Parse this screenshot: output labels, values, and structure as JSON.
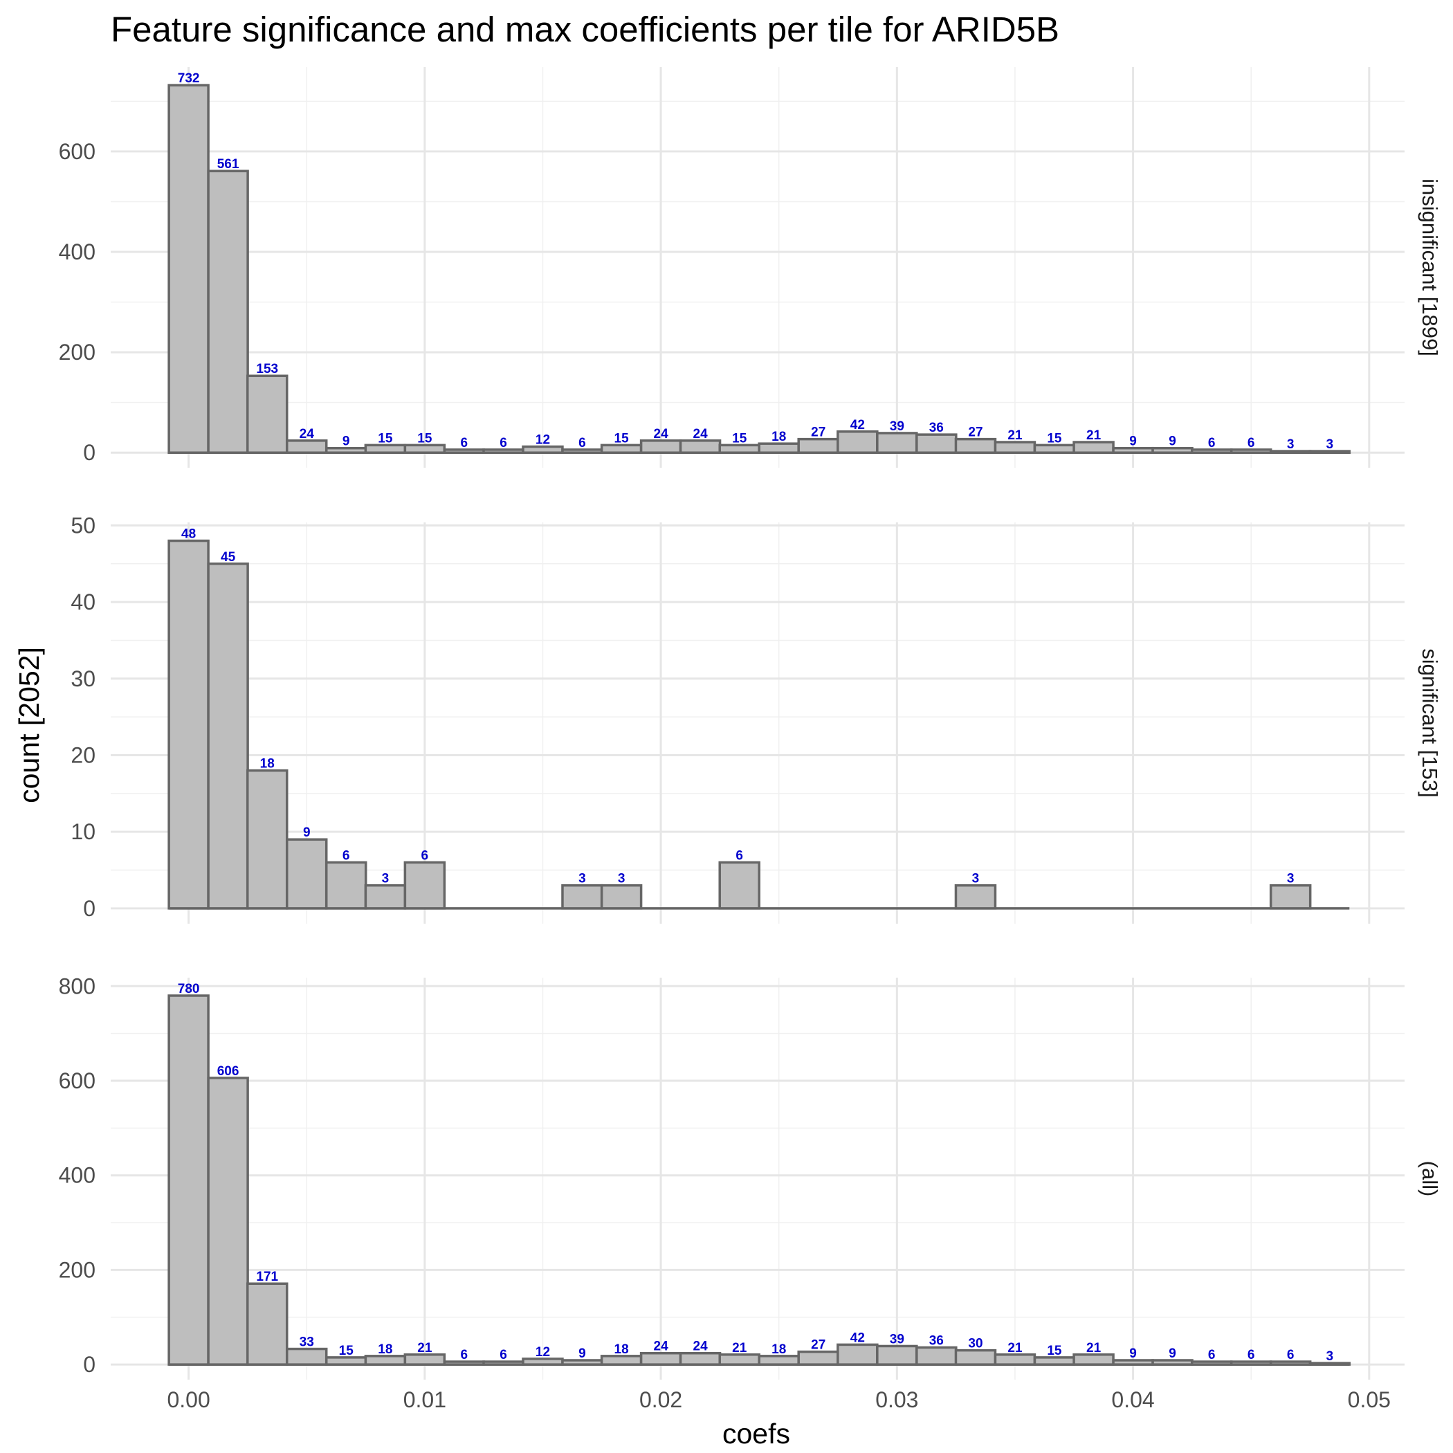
{
  "chart_data": {
    "type": "bar",
    "title": "Feature significance and max coefficients per tile for ARID5B",
    "xlabel": "coefs",
    "ylabel": "count [2052]",
    "xlim": [
      -0.0033,
      0.0515
    ],
    "x_ticks": [
      "0.00",
      "0.01",
      "0.02",
      "0.03",
      "0.04",
      "0.05"
    ],
    "x_tick_values": [
      0,
      0.01,
      0.02,
      0.03,
      0.04,
      0.05
    ],
    "bin_width": 0.00167,
    "x": [
      0,
      0.00167,
      0.00333,
      0.005,
      0.00667,
      0.00833,
      0.01,
      0.01167,
      0.01333,
      0.015,
      0.01667,
      0.01833,
      0.02,
      0.02167,
      0.02333,
      0.025,
      0.02667,
      0.02833,
      0.03,
      0.03167,
      0.03333,
      0.035,
      0.03667,
      0.03833,
      0.04,
      0.04167,
      0.04333,
      0.045,
      0.04667,
      0.04833
    ],
    "grid": true,
    "bar_fill": "#bebebe",
    "bar_stroke": "#666666",
    "label_color": "#0000cd",
    "panels": [
      {
        "strip": "insignificant [1899]",
        "ylim": [
          -30,
          768
        ],
        "y_ticks": [
          0,
          200,
          400,
          600
        ],
        "values": [
          732,
          561,
          153,
          24,
          9,
          15,
          15,
          6,
          6,
          12,
          6,
          15,
          24,
          24,
          15,
          18,
          27,
          42,
          39,
          36,
          27,
          21,
          15,
          21,
          9,
          9,
          6,
          6,
          3,
          3
        ]
      },
      {
        "strip": "significant [153]",
        "ylim": [
          -2,
          50.4
        ],
        "y_ticks": [
          0,
          10,
          20,
          30,
          40,
          50
        ],
        "values": [
          48,
          45,
          18,
          9,
          6,
          3,
          6,
          0,
          0,
          0,
          3,
          3,
          0,
          0,
          6,
          0,
          0,
          0,
          0,
          0,
          3,
          0,
          0,
          0,
          0,
          0,
          0,
          0,
          3,
          0
        ]
      },
      {
        "strip": "(all)",
        "ylim": [
          -32,
          818
        ],
        "y_ticks": [
          0,
          200,
          400,
          600,
          800
        ],
        "values": [
          780,
          606,
          171,
          33,
          15,
          18,
          21,
          6,
          6,
          12,
          9,
          18,
          24,
          24,
          21,
          18,
          27,
          42,
          39,
          36,
          30,
          21,
          15,
          21,
          9,
          9,
          6,
          6,
          6,
          3
        ]
      }
    ]
  }
}
